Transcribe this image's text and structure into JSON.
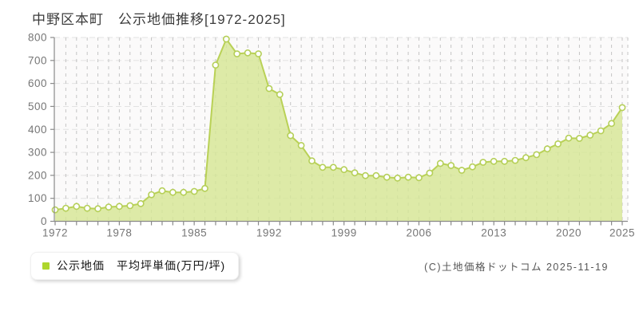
{
  "title": "中野区本町　公示地価推移[1972-2025]",
  "legend": {
    "label": "公示地価　平均坪単価(万円/坪)",
    "marker_color": "#aed62c"
  },
  "copyright": "(C)土地価格ドットコム 2025-11-19",
  "colors": {
    "plot_bg": "#fbfafa",
    "area_fill": "#d6e795",
    "line": "#b9d156",
    "marker_fill": "#ffffff",
    "marker_stroke": "#b5cf58",
    "h_grid": "#e2e2e2",
    "v_grid": "#c4c4c4",
    "axis": "#8a8a8a",
    "tick_text": "#767676"
  },
  "chart_data": {
    "type": "area",
    "title": "中野区本町 公示地価推移[1972-2025]",
    "ylabel": "平均坪単価(万円/坪)",
    "xlabel": "年",
    "ylim": [
      0,
      800
    ],
    "y_ticks": [
      0,
      100,
      200,
      300,
      400,
      500,
      600,
      700,
      800
    ],
    "x_tick_labels": [
      1972,
      1978,
      1985,
      1992,
      1999,
      2006,
      2013,
      2020,
      2025
    ],
    "grid": "dashed",
    "legend_position": "bottom-left",
    "x": [
      1972,
      1973,
      1974,
      1975,
      1976,
      1977,
      1978,
      1979,
      1980,
      1981,
      1982,
      1983,
      1984,
      1985,
      1986,
      1987,
      1988,
      1989,
      1990,
      1991,
      1992,
      1993,
      1994,
      1995,
      1996,
      1997,
      1998,
      1999,
      2000,
      2001,
      2002,
      2003,
      2004,
      2005,
      2006,
      2007,
      2008,
      2009,
      2010,
      2011,
      2012,
      2013,
      2014,
      2015,
      2016,
      2017,
      2018,
      2019,
      2020,
      2021,
      2022,
      2023,
      2024,
      2025
    ],
    "values": [
      50,
      57,
      65,
      57,
      55,
      62,
      65,
      68,
      77,
      116,
      133,
      126,
      126,
      130,
      143,
      680,
      793,
      729,
      733,
      729,
      578,
      552,
      373,
      330,
      263,
      235,
      235,
      225,
      211,
      199,
      199,
      192,
      188,
      192,
      190,
      210,
      252,
      243,
      222,
      237,
      257,
      261,
      261,
      265,
      277,
      290,
      315,
      337,
      362,
      361,
      375,
      394,
      426,
      495
    ]
  }
}
